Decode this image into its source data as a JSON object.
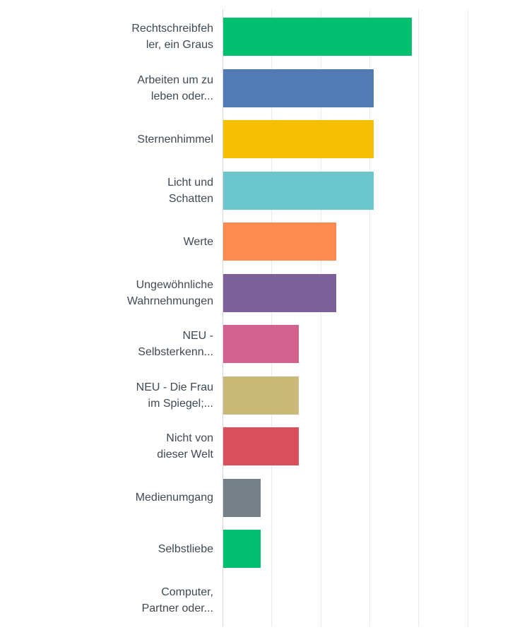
{
  "chart_data": {
    "type": "bar",
    "orientation": "horizontal",
    "title": "",
    "xlabel": "",
    "ylabel": "",
    "unit": "percent",
    "xlim": [
      0,
      117
    ],
    "gridlines": [
      0,
      20,
      40,
      60,
      80,
      100
    ],
    "grid": "on",
    "legend": "none",
    "axis_color": "#d4d7d9",
    "gridline_color": "#e9eaeb",
    "label_color": "#3e4a54",
    "categories": [
      {
        "label": "Rechtschreibfehler, ein Graus",
        "label_lines": [
          "Rechtschreibfeh",
          "ler, ein Graus"
        ],
        "value": 76.92,
        "color": "#00bf6f"
      },
      {
        "label": "Arbeiten um zu leben oder...",
        "label_lines": [
          "Arbeiten um zu",
          "leben oder..."
        ],
        "value": 61.54,
        "color": "#507bb4"
      },
      {
        "label": "Sternenhimmel",
        "label_lines": [
          "Sternenhimmel"
        ],
        "value": 61.54,
        "color": "#f6be00"
      },
      {
        "label": "Licht und Schatten",
        "label_lines": [
          "Licht und",
          "Schatten"
        ],
        "value": 61.54,
        "color": "#6bc6ce"
      },
      {
        "label": "Werte",
        "label_lines": [
          "Werte"
        ],
        "value": 46.15,
        "color": "#fc8b4f"
      },
      {
        "label": "Ungewöhnliche Wahrnehmungen",
        "label_lines": [
          "Ungewöhnliche",
          "Wahrnehmungen"
        ],
        "value": 46.15,
        "color": "#7d5f99"
      },
      {
        "label": "NEU - Selbsterkenn...",
        "label_lines": [
          "NEU -",
          "Selbsterkenn..."
        ],
        "value": 30.77,
        "color": "#d3618d"
      },
      {
        "label": "NEU - Die Frau im Spiegel;...",
        "label_lines": [
          "NEU - Die Frau",
          "im Spiegel;..."
        ],
        "value": 30.77,
        "color": "#cab978"
      },
      {
        "label": "Nicht von dieser Welt",
        "label_lines": [
          "Nicht von",
          "dieser Welt"
        ],
        "value": 30.77,
        "color": "#d94f5c"
      },
      {
        "label": "Medienumgang",
        "label_lines": [
          "Medienumgang"
        ],
        "value": 15.38,
        "color": "#768089"
      },
      {
        "label": "Selbstliebe",
        "label_lines": [
          "Selbstliebe"
        ],
        "value": 15.38,
        "color": "#00bf6f"
      },
      {
        "label": "Computer, Partner oder...",
        "label_lines": [
          "Computer,",
          "Partner oder..."
        ],
        "value": 0,
        "color": "#00bf6f"
      }
    ]
  }
}
